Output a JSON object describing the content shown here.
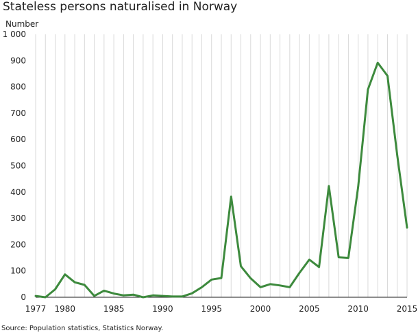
{
  "chart_data": {
    "type": "line",
    "title": "Stateless persons naturalised in Norway",
    "ylabel": "Number",
    "xlabel": "",
    "source": "Source: Population statistics, Statistics Norway.",
    "ylim": [
      0,
      1000
    ],
    "xlim": [
      1977,
      2015
    ],
    "y_ticks": [
      0,
      100,
      200,
      300,
      400,
      500,
      600,
      700,
      800,
      900,
      1000
    ],
    "y_tick_labels": [
      "0",
      "100",
      "200",
      "300",
      "400",
      "500",
      "600",
      "700",
      "800",
      "900",
      "1 000"
    ],
    "x_ticks": [
      1977,
      1980,
      1985,
      1990,
      1995,
      2000,
      2005,
      2010,
      2015
    ],
    "x_tick_labels": [
      "1977",
      "1980",
      "1985",
      "1990",
      "1995",
      "2000",
      "2005",
      "2010",
      "2015"
    ],
    "grid": "vertical lines at each year",
    "series": [
      {
        "color": "#3d8a3d",
        "x": [
          1977,
          1978,
          1979,
          1980,
          1981,
          1982,
          1983,
          1984,
          1985,
          1986,
          1987,
          1988,
          1989,
          1990,
          1991,
          1992,
          1993,
          1994,
          1995,
          1996,
          1997,
          1998,
          1999,
          2000,
          2001,
          2002,
          2003,
          2004,
          2005,
          2006,
          2007,
          2008,
          2009,
          2010,
          2011,
          2012,
          2013,
          2014,
          2015
        ],
        "values": [
          5,
          0,
          30,
          87,
          57,
          47,
          5,
          25,
          14,
          7,
          10,
          0,
          7,
          5,
          3,
          3,
          15,
          38,
          67,
          73,
          383,
          118,
          72,
          38,
          50,
          45,
          38,
          93,
          143,
          115,
          423,
          152,
          150,
          420,
          790,
          892,
          842,
          540,
          265
        ]
      }
    ]
  }
}
